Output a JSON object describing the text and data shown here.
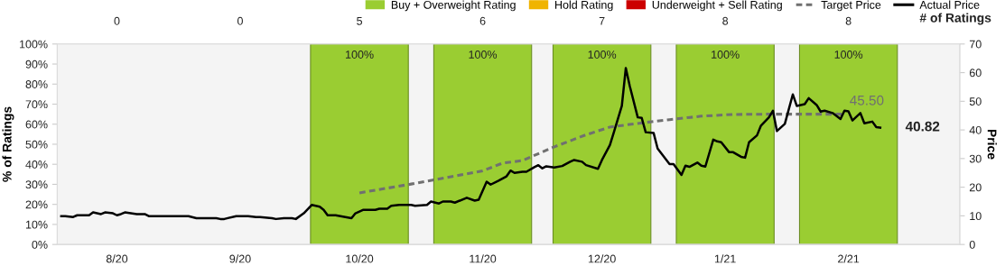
{
  "chart_data": {
    "type": "bar",
    "x": [
      "2020-08-16",
      "2020-09-16",
      "2020-10-16",
      "2020-11-16",
      "2020-12-16",
      "2021-01-16",
      "2021-02-16"
    ],
    "xlim": [
      "2020-08-01",
      "2021-03-16"
    ],
    "xticks": [
      {
        "value": "2020-08-16",
        "label": "8/20"
      },
      {
        "value": "2020-09-16",
        "label": "9/20"
      },
      {
        "value": "2020-10-16",
        "label": "10/20"
      },
      {
        "value": "2020-11-16",
        "label": "11/20"
      },
      {
        "value": "2020-12-16",
        "label": "12/20"
      },
      {
        "value": "2021-01-16",
        "label": "1/21"
      },
      {
        "value": "2021-02-16",
        "label": "2/21"
      }
    ],
    "annotations": [
      "0",
      "0",
      "5",
      "6",
      "7",
      "8",
      "8",
      "# of Ratings"
    ],
    "ylabel": "% of Ratings",
    "y2label": "Price",
    "ylim": [
      0,
      100
    ],
    "yticks": [
      {
        "value": 0,
        "label": "0%"
      },
      {
        "value": 10,
        "label": "10%"
      },
      {
        "value": 20,
        "label": "20%"
      },
      {
        "value": 30,
        "label": "30%"
      },
      {
        "value": 40,
        "label": "40%"
      },
      {
        "value": 50,
        "label": "50%"
      },
      {
        "value": 60,
        "label": "60%"
      },
      {
        "value": 70,
        "label": "70%"
      },
      {
        "value": 80,
        "label": "80%"
      },
      {
        "value": 90,
        "label": "90%"
      },
      {
        "value": 100,
        "label": "100%"
      }
    ],
    "y2lim": [
      0,
      70
    ],
    "y2ticks": [
      0,
      10,
      20,
      30,
      40,
      50,
      60,
      70
    ],
    "grid": false,
    "legend": "top right",
    "series": [
      {
        "name": "Buy + Overweight Rating",
        "color": "#9acd32",
        "values": [
          0,
          0,
          100,
          100,
          100,
          100,
          100
        ],
        "value_labels": [
          null,
          null,
          "100%",
          "100%",
          "100%",
          "100%",
          "100%"
        ]
      },
      {
        "name": "Hold Rating",
        "color": "#f0b400",
        "values": [
          0,
          0,
          0,
          0,
          0,
          0,
          0
        ]
      },
      {
        "name": "Underweight + Sell Rating",
        "color": "#cc0000",
        "values": [
          0,
          0,
          0,
          0,
          0,
          0,
          0
        ]
      },
      {
        "name": "Target Price",
        "type": "line",
        "axis": "y2",
        "color": "#707070",
        "line_style": "dashed",
        "x": [
          "2020-10-16",
          "2020-10-29",
          "2020-11-16",
          "2020-11-21",
          "2020-11-26",
          "2020-12-04",
          "2020-12-12",
          "2020-12-18",
          "2020-12-24",
          "2021-01-02",
          "2021-01-10",
          "2021-01-18",
          "2021-01-27",
          "2021-02-15"
        ],
        "values": [
          18.0,
          21.1,
          25.7,
          28.4,
          29.3,
          34.1,
          38.3,
          41.0,
          42.1,
          43.6,
          44.8,
          45.4,
          45.5,
          45.5
        ],
        "value_labels": [
          null,
          null,
          null,
          null,
          null,
          null,
          null,
          null,
          null,
          null,
          null,
          null,
          null,
          "45.50"
        ]
      },
      {
        "name": "Actual Price",
        "type": "line",
        "axis": "y2",
        "color": "#000000",
        "line_style": "solid",
        "x": [
          "2020-08-02",
          "2020-08-03",
          "2020-08-05",
          "2020-08-06",
          "2020-08-09",
          "2020-08-10",
          "2020-08-12",
          "2020-08-13",
          "2020-08-15",
          "2020-08-16",
          "2020-08-17",
          "2020-08-18",
          "2020-08-21",
          "2020-08-23",
          "2020-08-24",
          "2020-09-03",
          "2020-09-05",
          "2020-09-10",
          "2020-09-11",
          "2020-09-12",
          "2020-09-15",
          "2020-09-18",
          "2020-09-20",
          "2020-09-21",
          "2020-09-24",
          "2020-09-25",
          "2020-09-27",
          "2020-09-29",
          "2020-09-30",
          "2020-10-02",
          "2020-10-04",
          "2020-10-06",
          "2020-10-07",
          "2020-10-08",
          "2020-10-10",
          "2020-10-14",
          "2020-10-15",
          "2020-10-17",
          "2020-10-20",
          "2020-10-21",
          "2020-10-23",
          "2020-10-24",
          "2020-10-26",
          "2020-10-29",
          "2020-10-30",
          "2020-11-02",
          "2020-11-03",
          "2020-11-05",
          "2020-11-06",
          "2020-11-08",
          "2020-11-09",
          "2020-11-12",
          "2020-11-14",
          "2020-11-15",
          "2020-11-17",
          "2020-11-18",
          "2020-11-20",
          "2020-11-22",
          "2020-11-23",
          "2020-11-24",
          "2020-11-26",
          "2020-11-27",
          "2020-11-29",
          "2020-11-30",
          "2020-12-01",
          "2020-12-02",
          "2020-12-04",
          "2020-12-06",
          "2020-12-08",
          "2020-12-09",
          "2020-12-11",
          "2020-12-12",
          "2020-12-15",
          "2020-12-16",
          "2020-12-18",
          "2020-12-19",
          "2020-12-21",
          "2020-12-22",
          "2020-12-23",
          "2020-12-25",
          "2020-12-26",
          "2020-12-27",
          "2020-12-29",
          "2020-12-30",
          "2021-01-02",
          "2021-01-03",
          "2021-01-05",
          "2021-01-06",
          "2021-01-07",
          "2021-01-09",
          "2021-01-10",
          "2021-01-11",
          "2021-01-13",
          "2021-01-14",
          "2021-01-15",
          "2021-01-17",
          "2021-01-18",
          "2021-01-20",
          "2021-01-21",
          "2021-01-22",
          "2021-01-24",
          "2021-01-25",
          "2021-01-27",
          "2021-01-28",
          "2021-01-29",
          "2021-01-31",
          "2021-02-02",
          "2021-02-03",
          "2021-02-05",
          "2021-02-06",
          "2021-02-08",
          "2021-02-09",
          "2021-02-10",
          "2021-02-12",
          "2021-02-14",
          "2021-02-15",
          "2021-02-16",
          "2021-02-17",
          "2021-02-19",
          "2021-02-20",
          "2021-02-22",
          "2021-02-23",
          "2021-02-24"
        ],
        "values": [
          9.9,
          9.9,
          9.6,
          10.2,
          10.2,
          11.2,
          10.6,
          11.2,
          10.9,
          10.2,
          10.6,
          11.2,
          10.6,
          10.6,
          9.9,
          9.9,
          9.2,
          9.2,
          8.9,
          8.9,
          9.9,
          9.9,
          9.6,
          9.6,
          9.2,
          8.9,
          9.2,
          9.2,
          8.9,
          10.9,
          13.8,
          13.2,
          12.1,
          10.2,
          10.2,
          9.2,
          10.9,
          12.1,
          12.1,
          12.5,
          12.5,
          13.5,
          13.8,
          13.8,
          13.5,
          13.8,
          15.0,
          14.3,
          15.0,
          15.0,
          14.6,
          16.3,
          15.3,
          15.6,
          21.9,
          20.9,
          22.3,
          23.8,
          25.8,
          25.0,
          25.4,
          25.4,
          27.0,
          27.7,
          26.6,
          27.3,
          26.9,
          27.4,
          28.9,
          29.5,
          28.9,
          27.7,
          26.4,
          29.5,
          34.7,
          39.2,
          48.4,
          61.6,
          55.3,
          44.4,
          44.2,
          39.2,
          38.9,
          33.5,
          28.1,
          28.1,
          24.3,
          27.5,
          27.1,
          28.6,
          27.5,
          27.2,
          36.6,
          36.0,
          35.7,
          32.2,
          32.2,
          30.6,
          30.3,
          35.7,
          38.1,
          41.5,
          44.4,
          46.7,
          39.6,
          42.1,
          52.4,
          48.4,
          49.0,
          51.1,
          48.7,
          46.4,
          46.7,
          45.9,
          43.8,
          46.7,
          46.5,
          43.3,
          45.9,
          42.3,
          42.9,
          41.0,
          40.82
        ],
        "value_labels": [
          null,
          null,
          null,
          null,
          null,
          null,
          null,
          null,
          null,
          null,
          null,
          null,
          null,
          null,
          null,
          null,
          null,
          null,
          null,
          null,
          null,
          null,
          null,
          null,
          null,
          null,
          null,
          null,
          null,
          null,
          null,
          null,
          null,
          null,
          null,
          null,
          null,
          null,
          null,
          null,
          null,
          null,
          null,
          null,
          null,
          null,
          null,
          null,
          null,
          null,
          null,
          null,
          null,
          null,
          null,
          null,
          null,
          null,
          null,
          null,
          null,
          null,
          null,
          null,
          null,
          null,
          null,
          null,
          null,
          null,
          null,
          null,
          null,
          null,
          null,
          null,
          null,
          null,
          null,
          null,
          null,
          null,
          null,
          null,
          null,
          null,
          null,
          null,
          null,
          null,
          null,
          null,
          null,
          null,
          null,
          null,
          null,
          null,
          null,
          null,
          null,
          null,
          null,
          null,
          null,
          null,
          null,
          null,
          null,
          null,
          null,
          null,
          null,
          null,
          null,
          null,
          null,
          null,
          null,
          null,
          null,
          null,
          "40.82"
        ]
      }
    ]
  }
}
